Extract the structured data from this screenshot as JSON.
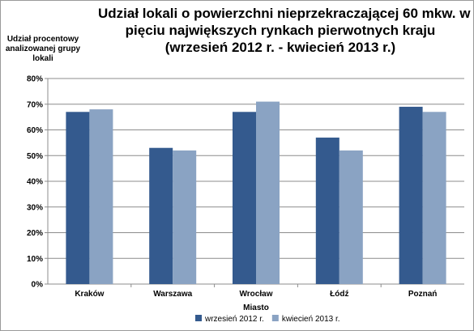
{
  "chart_data": {
    "type": "bar",
    "title_lines": [
      "Udział lokali o powierzchni nieprzekraczającej  60 mkw. w",
      "pięciu największych rynkach pierwotnych kraju",
      "(wrzesień 2012 r. - kwiecień 2013 r.)"
    ],
    "ylabel_lines": [
      "Udział procentowy",
      "analizowanej grupy",
      "lokali"
    ],
    "xlabel": "Miasto",
    "categories": [
      "Kraków",
      "Warszawa",
      "Wrocław",
      "Łódź",
      "Poznań"
    ],
    "series": [
      {
        "name": "wrzesień 2012 r.",
        "color": "#345a8e",
        "values": [
          67,
          53,
          67,
          57,
          69
        ]
      },
      {
        "name": "kwiecień 2013 r.",
        "color": "#8aa3c3",
        "values": [
          68,
          52,
          71,
          52,
          67
        ]
      }
    ],
    "y_ticks": [
      "0%",
      "10%",
      "20%",
      "30%",
      "40%",
      "50%",
      "60%",
      "70%",
      "80%"
    ],
    "ylim": [
      0,
      80
    ],
    "grid": true,
    "legend_position": "bottom"
  }
}
